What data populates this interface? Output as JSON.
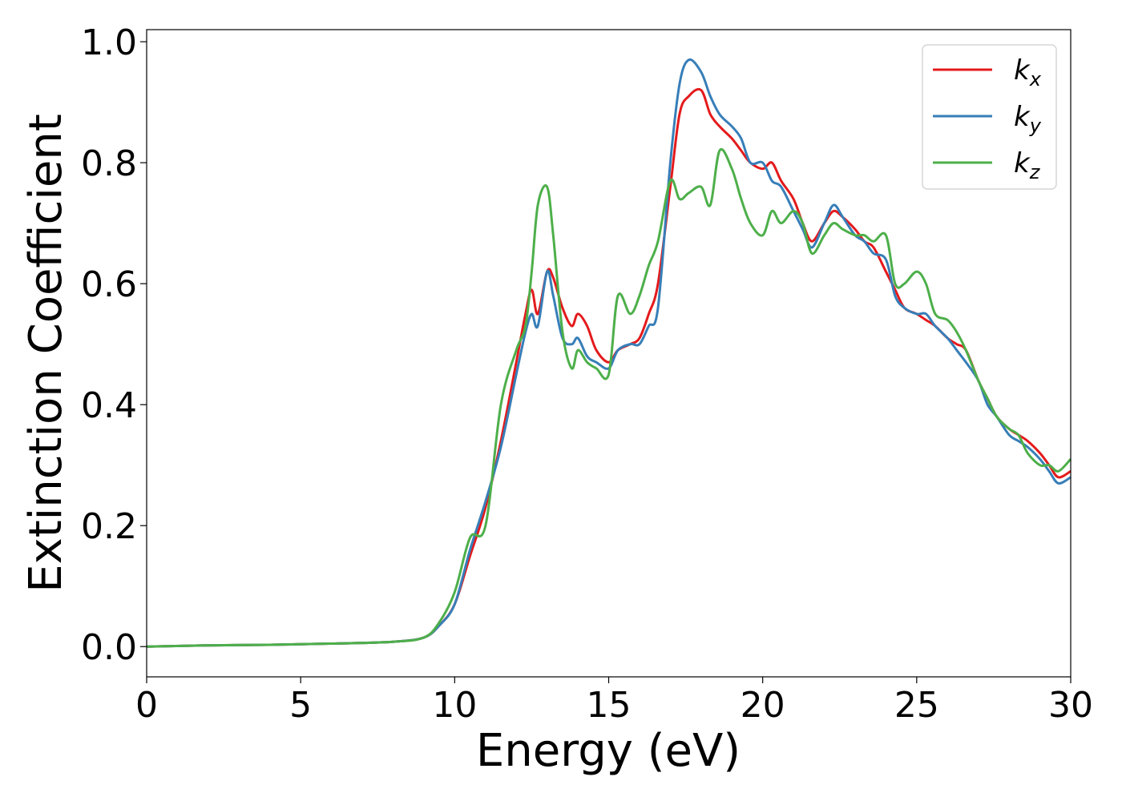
{
  "chart_data": {
    "type": "line",
    "xlabel": "Energy (eV)",
    "ylabel": "Extinction Coefficient",
    "xlim": [
      0,
      30
    ],
    "ylim": [
      -0.05,
      1.02
    ],
    "xticks": [
      0,
      5,
      10,
      15,
      20,
      25,
      30
    ],
    "xtick_labels": [
      "0",
      "5",
      "10",
      "15",
      "20",
      "25",
      "30"
    ],
    "yticks": [
      0.0,
      0.2,
      0.4,
      0.6,
      0.8,
      1.0
    ],
    "ytick_labels": [
      "0.0",
      "0.2",
      "0.4",
      "0.6",
      "0.8",
      "1.0"
    ],
    "grid": false,
    "legend_position": "top-right",
    "series": [
      {
        "name": "k",
        "subscript": "x",
        "color": "#e41a1c",
        "x": [
          0,
          2,
          4,
          6,
          8,
          9,
          9.5,
          10,
          10.5,
          11,
          11.5,
          12,
          12.3,
          12.5,
          12.7,
          13,
          13.2,
          13.5,
          13.8,
          14,
          14.3,
          14.6,
          15,
          15.3,
          15.7,
          16,
          16.3,
          16.6,
          17,
          17.3,
          17.6,
          18,
          18.3,
          18.6,
          19,
          19.3,
          19.6,
          20,
          20.3,
          20.6,
          21,
          21.3,
          21.6,
          22,
          22.3,
          22.6,
          23,
          23.3,
          23.6,
          24,
          24.3,
          24.6,
          25,
          25.3,
          25.6,
          26,
          26.3,
          26.6,
          27,
          27.3,
          27.6,
          28,
          28.3,
          28.6,
          29,
          29.3,
          29.6,
          30
        ],
        "values": [
          0.0,
          0.002,
          0.003,
          0.005,
          0.008,
          0.015,
          0.035,
          0.07,
          0.15,
          0.23,
          0.34,
          0.47,
          0.55,
          0.59,
          0.55,
          0.62,
          0.61,
          0.56,
          0.53,
          0.55,
          0.53,
          0.49,
          0.47,
          0.49,
          0.5,
          0.51,
          0.55,
          0.6,
          0.76,
          0.88,
          0.91,
          0.92,
          0.88,
          0.86,
          0.84,
          0.82,
          0.8,
          0.79,
          0.8,
          0.77,
          0.74,
          0.7,
          0.67,
          0.7,
          0.72,
          0.71,
          0.69,
          0.67,
          0.66,
          0.62,
          0.59,
          0.56,
          0.55,
          0.54,
          0.53,
          0.51,
          0.5,
          0.49,
          0.44,
          0.41,
          0.38,
          0.36,
          0.35,
          0.34,
          0.32,
          0.3,
          0.28,
          0.29
        ]
      },
      {
        "name": "k",
        "subscript": "y",
        "color": "#377eb8",
        "x": [
          0,
          2,
          4,
          6,
          8,
          9,
          9.5,
          10,
          10.5,
          11,
          11.5,
          12,
          12.3,
          12.5,
          12.7,
          13,
          13.2,
          13.5,
          13.8,
          14,
          14.3,
          14.6,
          15,
          15.3,
          15.7,
          16,
          16.3,
          16.6,
          17,
          17.3,
          17.6,
          18,
          18.3,
          18.6,
          19,
          19.3,
          19.6,
          20,
          20.3,
          20.6,
          21,
          21.3,
          21.6,
          22,
          22.3,
          22.6,
          23,
          23.3,
          23.6,
          24,
          24.3,
          24.6,
          25,
          25.3,
          25.6,
          26,
          26.3,
          26.6,
          27,
          27.3,
          27.6,
          28,
          28.3,
          28.6,
          29,
          29.3,
          29.6,
          30
        ],
        "values": [
          0.0,
          0.002,
          0.003,
          0.005,
          0.008,
          0.015,
          0.035,
          0.07,
          0.16,
          0.24,
          0.33,
          0.45,
          0.52,
          0.55,
          0.53,
          0.62,
          0.58,
          0.51,
          0.5,
          0.51,
          0.48,
          0.47,
          0.46,
          0.49,
          0.5,
          0.5,
          0.53,
          0.56,
          0.8,
          0.93,
          0.97,
          0.95,
          0.91,
          0.88,
          0.86,
          0.84,
          0.8,
          0.8,
          0.77,
          0.76,
          0.72,
          0.69,
          0.66,
          0.7,
          0.73,
          0.71,
          0.68,
          0.67,
          0.65,
          0.64,
          0.58,
          0.56,
          0.55,
          0.55,
          0.53,
          0.51,
          0.49,
          0.47,
          0.44,
          0.4,
          0.38,
          0.35,
          0.34,
          0.33,
          0.31,
          0.29,
          0.27,
          0.28
        ]
      },
      {
        "name": "k",
        "subscript": "z",
        "color": "#4daf4a",
        "x": [
          0,
          2,
          4,
          6,
          8,
          9,
          9.5,
          10,
          10.5,
          11,
          11.5,
          12,
          12.3,
          12.5,
          12.7,
          13,
          13.2,
          13.5,
          13.8,
          14,
          14.3,
          14.6,
          15,
          15.3,
          15.7,
          16,
          16.3,
          16.6,
          17,
          17.3,
          17.6,
          18,
          18.3,
          18.6,
          19,
          19.3,
          19.6,
          20,
          20.3,
          20.6,
          21,
          21.3,
          21.6,
          22,
          22.3,
          22.6,
          23,
          23.3,
          23.6,
          24,
          24.3,
          24.6,
          25,
          25.3,
          25.6,
          26,
          26.3,
          26.6,
          27,
          27.3,
          27.6,
          28,
          28.3,
          28.6,
          29,
          29.3,
          29.6,
          30
        ],
        "values": [
          0.0,
          0.002,
          0.003,
          0.005,
          0.008,
          0.015,
          0.04,
          0.09,
          0.18,
          0.2,
          0.4,
          0.49,
          0.53,
          0.62,
          0.73,
          0.76,
          0.68,
          0.52,
          0.46,
          0.49,
          0.47,
          0.46,
          0.45,
          0.58,
          0.55,
          0.58,
          0.63,
          0.67,
          0.77,
          0.74,
          0.75,
          0.76,
          0.73,
          0.82,
          0.79,
          0.74,
          0.7,
          0.68,
          0.72,
          0.7,
          0.72,
          0.7,
          0.65,
          0.68,
          0.7,
          0.69,
          0.68,
          0.68,
          0.67,
          0.68,
          0.6,
          0.6,
          0.62,
          0.6,
          0.55,
          0.54,
          0.52,
          0.49,
          0.44,
          0.41,
          0.38,
          0.36,
          0.35,
          0.32,
          0.3,
          0.3,
          0.29,
          0.31
        ]
      }
    ]
  }
}
